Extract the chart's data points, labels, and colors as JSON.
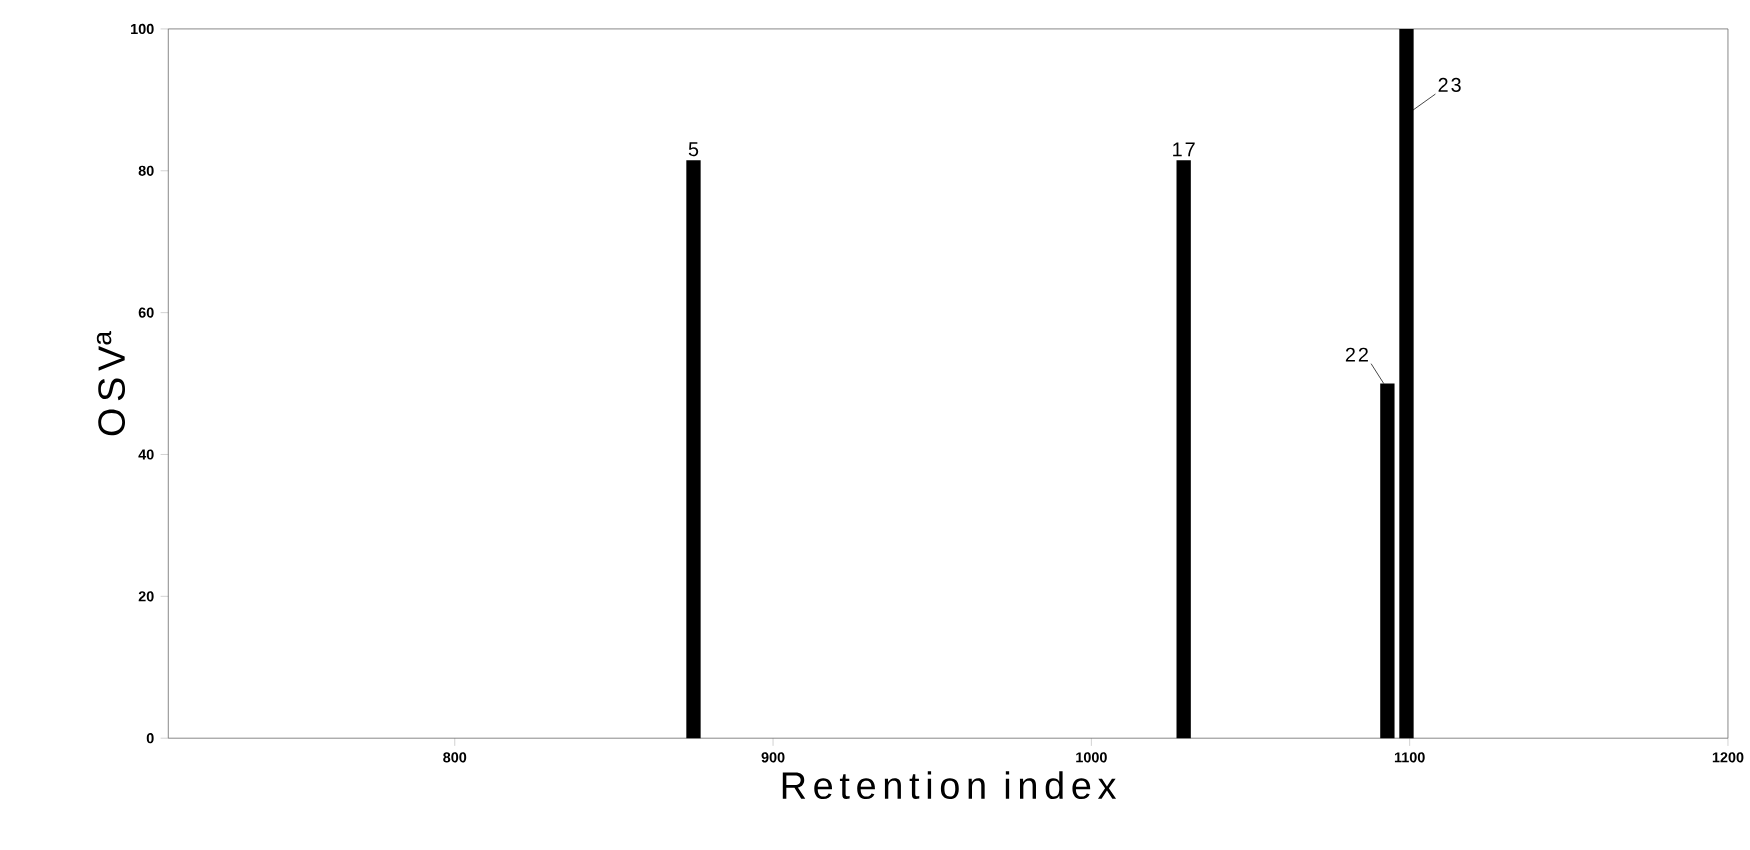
{
  "chart_data": {
    "type": "bar",
    "xlabel": "Retention index",
    "ylabel": "OSV$^{a}$",
    "x": [
      875,
      1029,
      1093,
      1099
    ],
    "values": [
      81.5,
      81.5,
      50,
      100
    ],
    "color": "#000000",
    "xlim": [
      710,
      1200
    ],
    "xticks": [
      800,
      900,
      1000,
      1100,
      1200
    ],
    "ylim": [
      0,
      100
    ],
    "yticks": [
      0,
      20,
      40,
      60,
      80,
      100
    ],
    "grid": false,
    "annotations": [
      {
        "text": "5",
        "x": 875,
        "y": 81.5
      },
      {
        "text": "17",
        "x": 1029,
        "y": 81.5
      },
      {
        "text": "22",
        "x": 1093,
        "y": 50
      },
      {
        "text": "23",
        "x": 1099,
        "y": 100
      }
    ]
  }
}
